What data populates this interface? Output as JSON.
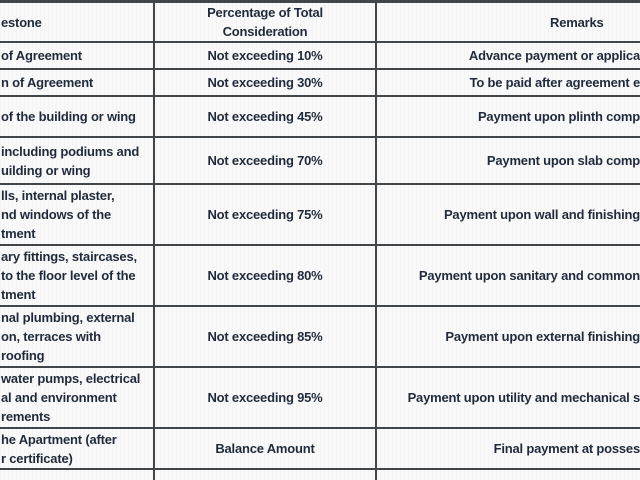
{
  "page": {
    "bg_color": "#f9f9f9",
    "border_color": "#41464a",
    "text_color": "#1f2b3c",
    "note": "table cropped at left and right edges"
  },
  "table": {
    "header": {
      "milestone": "estone",
      "percentage_line1": "Percentage of Total",
      "percentage_line2": "Consideration",
      "remarks": "Remarks"
    },
    "rows": [
      {
        "milestone_lines": [
          "of Agreement"
        ],
        "percentage": "Not exceeding 10%",
        "remark": "Advance payment or applica"
      },
      {
        "milestone_lines": [
          "n of Agreement"
        ],
        "percentage": "Not exceeding 30%",
        "remark": "To be paid after agreement e"
      },
      {
        "milestone_lines": [
          "of the building or wing"
        ],
        "percentage": "Not exceeding 45%",
        "remark": "Payment upon plinth comp"
      },
      {
        "milestone_lines": [
          "including podiums and",
          "uilding or wing"
        ],
        "percentage": "Not exceeding 70%",
        "remark": "Payment upon slab comp"
      },
      {
        "milestone_lines": [
          "lls, internal plaster,",
          "nd windows of the",
          "tment"
        ],
        "percentage": "Not exceeding 75%",
        "remark": "Payment upon wall and finishing"
      },
      {
        "milestone_lines": [
          "ary fittings, staircases,",
          "to the floor level of the",
          "tment"
        ],
        "percentage": "Not exceeding 80%",
        "remark": "Payment upon sanitary and common"
      },
      {
        "milestone_lines": [
          "nal plumbing, external",
          "on, terraces with",
          "roofing"
        ],
        "percentage": "Not exceeding 85%",
        "remark": "Payment upon external finishing"
      },
      {
        "milestone_lines": [
          "water pumps, electrical",
          "al and environment",
          "rements"
        ],
        "percentage": "Not exceeding 95%",
        "remark": "Payment upon utility and mechanical s"
      },
      {
        "milestone_lines": [
          "he Apartment (after",
          "r certificate)"
        ],
        "percentage": "Balance Amount",
        "remark": "Final payment at posses"
      }
    ]
  }
}
